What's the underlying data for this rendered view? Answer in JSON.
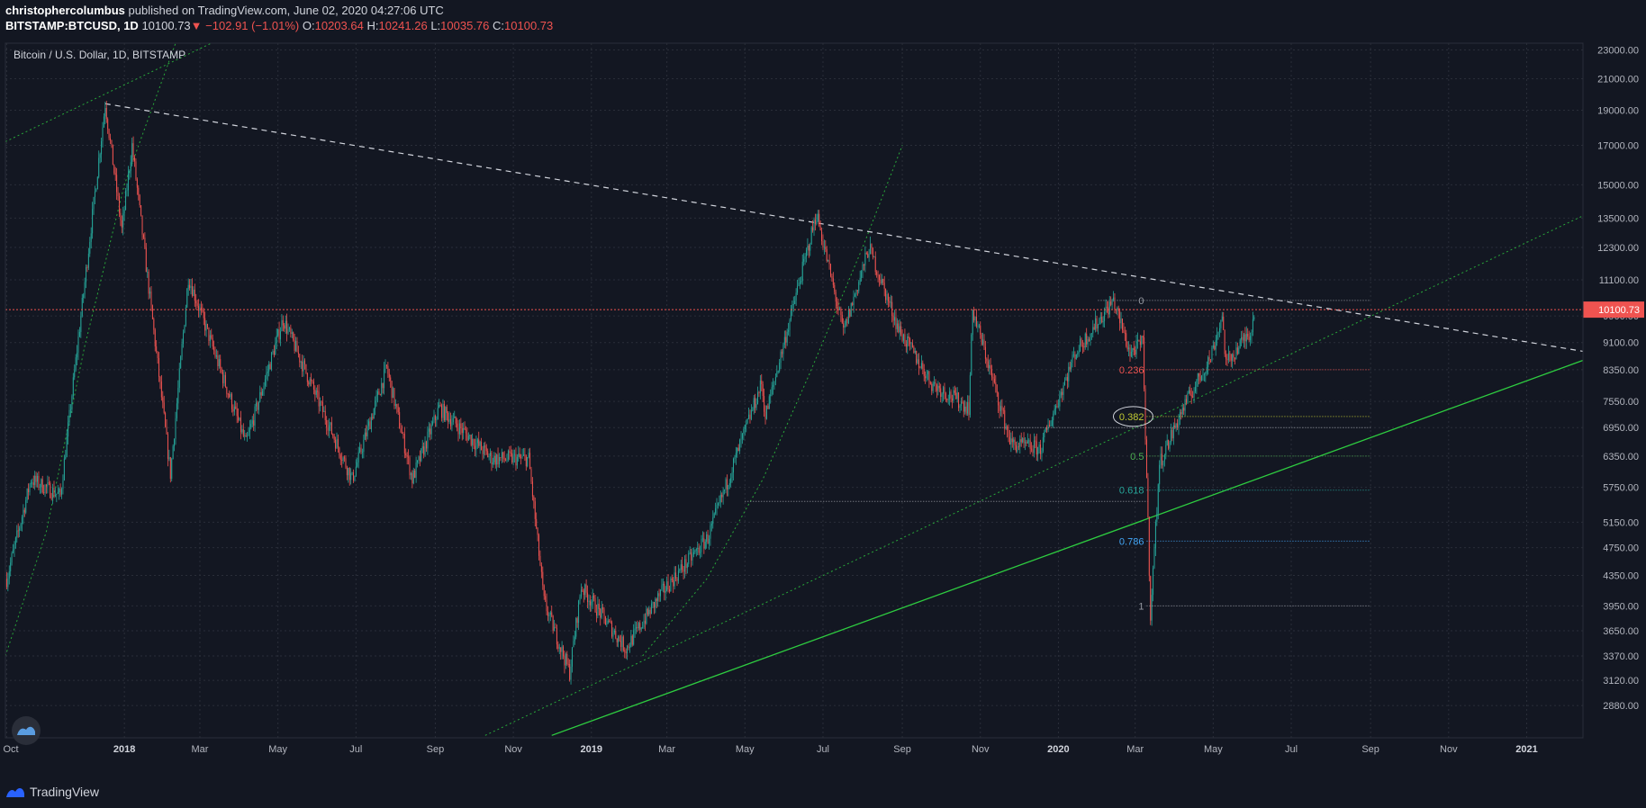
{
  "header": {
    "publisher": "christophercolumbus",
    "published_text": "published on TradingView.com, June 02, 2020 04:27:06 UTC",
    "symbol": "BITSTAMP:BTCUSD, 1D",
    "last": "10100.73",
    "change_arrow": "▼",
    "change": "−102.91 (−1.01%)",
    "o_label": "O:",
    "o": "10203.64",
    "h_label": "H:",
    "h": "10241.26",
    "l_label": "L:",
    "l": "10035.76",
    "c_label": "C:",
    "c": "10100.73"
  },
  "legend": {
    "title": "Bitcoin / U.S. Dollar, 1D, BITSTAMP"
  },
  "footer": {
    "brand": "TradingView"
  },
  "colors": {
    "background": "#131722",
    "up": "#26a69a",
    "down": "#ef5350",
    "trend_green": "#2ecc40",
    "price_line": "#ef5350"
  },
  "chart_data": {
    "type": "candlestick",
    "y_scale": "log",
    "ylim": [
      2600,
      23500
    ],
    "y_ticks": [
      23000,
      21000,
      19000,
      17000,
      15000,
      13500,
      12300,
      11100,
      9900,
      9100,
      8350,
      7550,
      6950,
      6350,
      5750,
      5150,
      4750,
      4350,
      3950,
      3650,
      3370,
      3120,
      2880
    ],
    "x_ticks": [
      "Oct",
      "2018",
      "Mar",
      "May",
      "Jul",
      "Sep",
      "Nov",
      "2019",
      "Mar",
      "May",
      "Jul",
      "Sep",
      "Nov",
      "2020",
      "Mar",
      "May",
      "Jul",
      "Sep",
      "Nov",
      "2021"
    ],
    "x_tick_dates": [
      "2017-10-01",
      "2018-01-01",
      "2018-03-01",
      "2018-05-01",
      "2018-07-01",
      "2018-09-01",
      "2018-11-01",
      "2019-01-01",
      "2019-03-01",
      "2019-05-01",
      "2019-07-01",
      "2019-09-01",
      "2019-11-01",
      "2020-01-01",
      "2020-03-01",
      "2020-05-01",
      "2020-07-01",
      "2020-09-01",
      "2020-11-01",
      "2021-01-01"
    ],
    "x_range": [
      "2017-09-30",
      "2021-02-14"
    ],
    "last_price": 10100.73,
    "last_price_label": "10100.73",
    "price_path": [
      [
        "2017-10-01",
        4300
      ],
      [
        "2017-10-20",
        5900
      ],
      [
        "2017-11-12",
        5600
      ],
      [
        "2017-11-28",
        9900
      ],
      [
        "2017-12-17",
        19400
      ],
      [
        "2017-12-30",
        13000
      ],
      [
        "2018-01-07",
        17000
      ],
      [
        "2018-02-06",
        6000
      ],
      [
        "2018-02-20",
        11200
      ],
      [
        "2018-04-06",
        6600
      ],
      [
        "2018-05-05",
        9800
      ],
      [
        "2018-06-28",
        5900
      ],
      [
        "2018-07-25",
        8400
      ],
      [
        "2018-08-14",
        5900
      ],
      [
        "2018-09-04",
        7400
      ],
      [
        "2018-10-15",
        6300
      ],
      [
        "2018-11-13",
        6300
      ],
      [
        "2018-11-25",
        4000
      ],
      [
        "2018-12-15",
        3200
      ],
      [
        "2018-12-24",
        4200
      ],
      [
        "2019-01-28",
        3450
      ],
      [
        "2019-02-24",
        4100
      ],
      [
        "2019-04-02",
        4900
      ],
      [
        "2019-05-14",
        8000
      ],
      [
        "2019-05-17",
        7200
      ],
      [
        "2019-06-26",
        13700
      ],
      [
        "2019-07-17",
        9400
      ],
      [
        "2019-08-06",
        12300
      ],
      [
        "2019-08-29",
        9500
      ],
      [
        "2019-09-24",
        8000
      ],
      [
        "2019-10-23",
        7400
      ],
      [
        "2019-10-26",
        10100
      ],
      [
        "2019-11-25",
        6600
      ],
      [
        "2019-12-18",
        6500
      ],
      [
        "2020-01-14",
        8800
      ],
      [
        "2020-02-13",
        10400
      ],
      [
        "2020-02-26",
        8800
      ],
      [
        "2020-03-07",
        9100
      ],
      [
        "2020-03-13",
        3850
      ],
      [
        "2020-03-20",
        6200
      ],
      [
        "2020-04-06",
        7300
      ],
      [
        "2020-04-29",
        8700
      ],
      [
        "2020-05-08",
        9900
      ],
      [
        "2020-05-11",
        8500
      ],
      [
        "2020-05-31",
        9500
      ],
      [
        "2020-06-02",
        10100
      ]
    ],
    "fibonacci": [
      {
        "level": "0",
        "price": 10400
      },
      {
        "level": "0.236",
        "price": 8350
      },
      {
        "level": "0.382",
        "price": 7200
      },
      {
        "level": "0.5",
        "price": 6350
      },
      {
        "level": "0.618",
        "price": 5700
      },
      {
        "level": "0.786",
        "price": 4850
      },
      {
        "level": "1",
        "price": 3950
      }
    ],
    "trendlines": [
      {
        "style": "dashed-white",
        "from": [
          "2017-12-17",
          19400
        ],
        "to": [
          "2021-02-14",
          8850
        ]
      },
      {
        "style": "solid-green",
        "from": [
          "2018-12-01",
          2620
        ],
        "to": [
          "2021-02-14",
          8600
        ]
      },
      {
        "style": "dotted-green",
        "from": [
          "2018-10-10",
          2620
        ],
        "to": [
          "2021-02-14",
          13600
        ]
      },
      {
        "style": "dotted-green",
        "from": [
          "2017-09-30",
          17200
        ],
        "to": [
          "2018-03-10",
          23500
        ]
      }
    ]
  }
}
